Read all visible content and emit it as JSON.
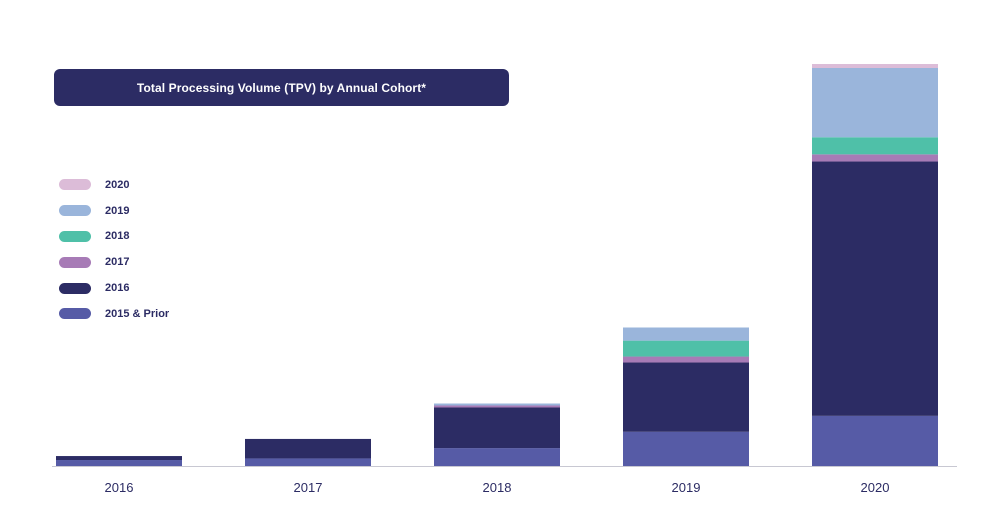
{
  "title": "Total Processing Volume (TPV) by Annual Cohort*",
  "colors": {
    "2020": "#dcbcd8",
    "2019": "#9ab5db",
    "2018": "#4fc0a8",
    "2017": "#a77bb6",
    "2016": "#2c2c64",
    "2015 & Prior": "#565ba6",
    "axis": "#c8c8d2"
  },
  "chart_data": {
    "type": "bar",
    "stacked": true,
    "title": "Total Processing Volume (TPV) by Annual Cohort*",
    "xlabel": "",
    "ylabel": "",
    "categories": [
      "2016",
      "2017",
      "2018",
      "2019",
      "2020"
    ],
    "ylim": [
      0,
      100
    ],
    "grid": false,
    "legend_position": "left",
    "series": [
      {
        "name": "2015 & Prior",
        "values": [
          1.5,
          1.9,
          4.5,
          8.6,
          12.6
        ]
      },
      {
        "name": "2016",
        "values": [
          1.0,
          4.9,
          10.2,
          17.4,
          63.9
        ]
      },
      {
        "name": "2017",
        "values": [
          0,
          0,
          0.5,
          1.5,
          1.8
        ]
      },
      {
        "name": "2018",
        "values": [
          0,
          0,
          0,
          4.0,
          4.3
        ]
      },
      {
        "name": "2019",
        "values": [
          0,
          0,
          0.5,
          3.3,
          17.4
        ]
      },
      {
        "name": "2020",
        "values": [
          0,
          0,
          0,
          0,
          1.0
        ]
      }
    ]
  },
  "legend": [
    {
      "label": "2020",
      "color": "#dcbcd8"
    },
    {
      "label": "2019",
      "color": "#9ab5db"
    },
    {
      "label": "2018",
      "color": "#4fc0a8"
    },
    {
      "label": "2017",
      "color": "#a77bb6"
    },
    {
      "label": "2016",
      "color": "#2c2c64"
    },
    {
      "label": "2015 & Prior",
      "color": "#565ba6"
    }
  ]
}
